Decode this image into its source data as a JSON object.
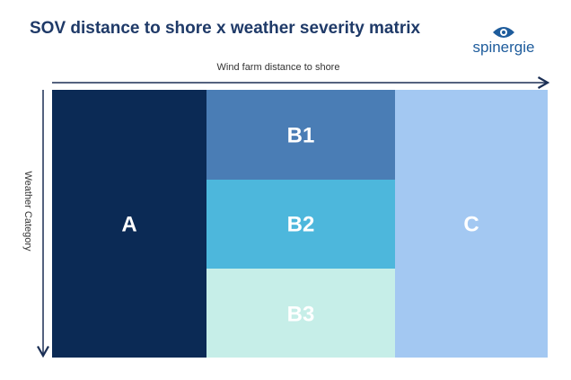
{
  "header": {
    "title": "SOV distance to shore x weather severity matrix",
    "logo": "spinergie"
  },
  "axes": {
    "x_label": "Wind farm distance to shore",
    "y_label": "Weather Category"
  },
  "cells": [
    {
      "label": "A"
    },
    {
      "label": "B1"
    },
    {
      "label": "B2"
    },
    {
      "label": "B3"
    },
    {
      "label": "C"
    }
  ]
}
